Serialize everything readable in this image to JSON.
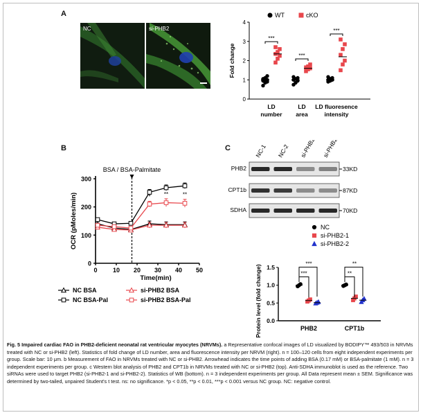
{
  "panels": {
    "a": {
      "letter": "A",
      "micrographs": [
        {
          "label": "NC"
        },
        {
          "label": "si-PHB2"
        }
      ],
      "chart_data": {
        "type": "scatter",
        "title": "",
        "ylabel": "Fold change",
        "ylim": [
          0,
          4
        ],
        "yticks": [
          0,
          1,
          2,
          3,
          4
        ],
        "categories": [
          "LD number",
          "LD area",
          "LD fluoresence intensity"
        ],
        "category_lines": [
          [
            "LD",
            "number"
          ],
          [
            "LD",
            "area"
          ],
          [
            "LD fluoresence",
            "intensity"
          ]
        ],
        "legend": {
          "placement": "top",
          "entries": [
            "WT",
            "cKO"
          ]
        },
        "series": [
          {
            "name": "WT",
            "color": "#000000",
            "marker": "circle",
            "groups": [
              [
                0.7,
                0.85,
                0.9,
                0.95,
                1.0,
                1.0,
                1.05,
                1.1,
                1.2
              ],
              [
                0.75,
                0.85,
                0.95,
                1.0,
                1.05,
                1.1,
                1.15
              ],
              [
                0.9,
                0.95,
                1.0,
                1.0,
                1.05,
                1.1,
                1.15
              ]
            ],
            "means": [
              1.0,
              1.0,
              1.0
            ]
          },
          {
            "name": "cKO",
            "color": "#e8474c",
            "marker": "square",
            "groups": [
              [
                1.9,
                2.1,
                2.25,
                2.35,
                2.45,
                2.6,
                2.7
              ],
              [
                1.45,
                1.55,
                1.6,
                1.65,
                1.7,
                1.8
              ],
              [
                1.5,
                1.8,
                2.0,
                2.3,
                2.6,
                2.85,
                3.1
              ]
            ],
            "means": [
              2.35,
              1.6,
              2.2
            ]
          }
        ],
        "significance": [
          "***",
          "***",
          "***"
        ]
      }
    },
    "b": {
      "letter": "B",
      "chart_data": {
        "type": "line",
        "xlabel": "Time(min)",
        "ylabel": "OCR (pMoles/min)",
        "xlim": [
          0,
          50
        ],
        "xticks": [
          0,
          10,
          20,
          30,
          40,
          50
        ],
        "ylim": [
          0,
          300
        ],
        "yticks": [
          0,
          100,
          200,
          300
        ],
        "annotation": "BSA / BSA-Palmitate",
        "injection_time": 17.5,
        "x": [
          1,
          9,
          17,
          26,
          34,
          43
        ],
        "series": [
          {
            "name": "NC BSA",
            "color": "#000000",
            "marker": "triangle",
            "values": [
              140,
              125,
              120,
              140,
              137,
              137
            ],
            "err": [
              8,
              6,
              6,
              10,
              10,
              10
            ]
          },
          {
            "name": "NC BSA-Pal",
            "color": "#000000",
            "marker": "square",
            "values": [
              155,
              140,
              142,
              252,
              268,
              275
            ],
            "err": [
              6,
              6,
              6,
              10,
              10,
              10
            ]
          },
          {
            "name": "si-PHB2 BSA",
            "color": "#e8474c",
            "marker": "triangle",
            "values": [
              128,
              120,
              118,
              135,
              135,
              135
            ],
            "err": [
              6,
              6,
              6,
              10,
              10,
              10
            ]
          },
          {
            "name": "si-PHB2 BSA-Pal",
            "color": "#e8474c",
            "marker": "square",
            "values": [
              135,
              130,
              125,
              210,
              215,
              213
            ],
            "err": [
              6,
              6,
              6,
              10,
              14,
              14
            ]
          }
        ],
        "significance": [
          {
            "x": 26,
            "label": "*"
          },
          {
            "x": 34,
            "label": "**"
          },
          {
            "x": 43,
            "label": "**"
          }
        ],
        "legend": [
          [
            "NC BSA",
            "si-PHB2 BSA"
          ],
          [
            "NC BSA-Pal",
            "si-PHB2 BSA-Pal"
          ]
        ]
      }
    },
    "c": {
      "letter": "C",
      "western_blot": {
        "lanes": [
          "NC-1",
          "NC-2",
          "si-PHB2-1",
          "si-PHB2-2"
        ],
        "rows": [
          {
            "protein": "PHB2",
            "size": "33KD",
            "intensity": [
              0.95,
              0.95,
              0.45,
              0.5
            ]
          },
          {
            "protein": "CPT1b",
            "size": "87KD",
            "intensity": [
              0.9,
              0.85,
              0.45,
              0.45
            ]
          },
          {
            "protein": "SDHA",
            "size": "70KD",
            "intensity": [
              0.95,
              0.95,
              0.95,
              0.95
            ]
          }
        ]
      },
      "chart_data": {
        "type": "scatter",
        "ylabel": "Protein level (fold change)",
        "ylim": [
          0,
          1.5
        ],
        "yticks": [
          "0.0",
          "0.5",
          "1.0",
          "1.5"
        ],
        "categories": [
          "PHB2",
          "CPT1b"
        ],
        "legend": [
          {
            "name": "NC",
            "color": "#000000",
            "marker": "circle"
          },
          {
            "name": "si-PHB2-1",
            "color": "#e8474c",
            "marker": "square"
          },
          {
            "name": "si-PHB2-2",
            "color": "#2233cc",
            "marker": "triangle"
          }
        ],
        "series": [
          {
            "name": "NC",
            "values": [
              [
                0.97,
                1.0,
                1.03
              ],
              [
                0.98,
                1.0,
                1.02
              ]
            ],
            "means": [
              1.0,
              1.0
            ]
          },
          {
            "name": "si-PHB2-1",
            "values": [
              [
                0.54,
                0.57,
                0.6
              ],
              [
                0.58,
                0.63,
                0.68
              ]
            ],
            "means": [
              0.57,
              0.63
            ]
          },
          {
            "name": "si-PHB2-2",
            "values": [
              [
                0.49,
                0.51,
                0.53
              ],
              [
                0.53,
                0.58,
                0.62
              ]
            ],
            "means": [
              0.51,
              0.58
            ]
          }
        ],
        "significance": [
          {
            "category": "PHB2",
            "pairs": [
              [
                "NC",
                "si-PHB2-1",
                "***"
              ],
              [
                "NC",
                "si-PHB2-2",
                "***"
              ]
            ]
          },
          {
            "category": "CPT1b",
            "pairs": [
              [
                "NC",
                "si-PHB2-1",
                "**"
              ],
              [
                "NC",
                "si-PHB2-2",
                "**"
              ]
            ]
          }
        ]
      }
    }
  },
  "caption": {
    "lead": "Fig. 5 Impaired cardiac FAO in PHB2-deficient neonatal rat ventricular myocytes (NRVMs).",
    "body": " a Representative confocal images of LD visualized by BODIPY™ 493/503 in NRVMs treated with NC or si-PHB2 (left). Statistics of fold change of LD number, area and fluorescence intensity per NRVM (right). n = 100–120 cells from eight independent experiments per group. Scale bar: 10 μm. b Measurement of FAO in NRVMs treated with NC or si-PHB2. Arrowhead indicates the time points of adding BSA (0.17 mM) or BSA-palmitate (1 mM). n = 3 independent experiments per group. c Western blot analysis of PHB2 and CPT1b in NRVMs treated with NC or si-PHB2 (top). Anti-SDHA immunoblot is used as the reference. Two siRNAs were used to target PHB2 (si-PHB2-1 and si-PHB2-2). Statistics of WB (bottom). n = 3 independent experiments per group. All Data represent mean ± SEM. Significance was determined by two-tailed, unpaired Student's t test. ns: no significance. *p < 0.05, **p < 0.01, ***p < 0.001 versus NC group. NC: negative control."
  }
}
